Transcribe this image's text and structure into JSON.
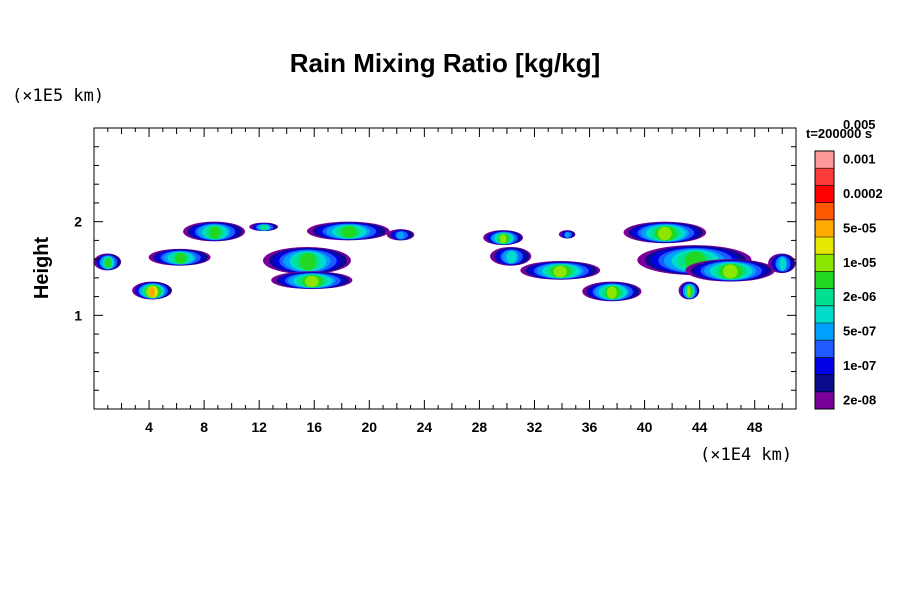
{
  "chart_data": {
    "type": "heatmap",
    "title": "Rain Mixing Ratio [kg/kg]",
    "xlabel": "",
    "ylabel": "Height",
    "x_units": "(×1E4 km)",
    "y_units": "(×1E5 km)",
    "time_label": "t=200000 s",
    "xlim": [
      0,
      51
    ],
    "ylim": [
      0,
      3
    ],
    "x_ticks": [
      4,
      8,
      12,
      16,
      20,
      24,
      28,
      32,
      36,
      40,
      44,
      48
    ],
    "y_ticks": [
      1,
      2
    ],
    "colorbar": {
      "colors": [
        "#7a009c",
        "#0a0a8c",
        "#0000e6",
        "#1e5aff",
        "#00a0ff",
        "#00dccc",
        "#00e090",
        "#20d820",
        "#8ce600",
        "#e6e600",
        "#ffaa00",
        "#ff5a00",
        "#ff0000",
        "#ff3c3c",
        "#ff9a9a"
      ],
      "tick_labels": [
        "2e-08",
        "1e-07",
        "5e-07",
        "2e-06",
        "1e-05",
        "5e-05",
        "0.0002",
        "0.001",
        "0.005"
      ]
    },
    "features": [
      {
        "x0": 0.0,
        "x1": 2.0,
        "y0": 1.48,
        "y1": 1.66,
        "peak": 7
      },
      {
        "x0": 2.8,
        "x1": 5.7,
        "y0": 1.17,
        "y1": 1.36,
        "peak": 10
      },
      {
        "x0": 6.5,
        "x1": 11.0,
        "y0": 1.79,
        "y1": 2.0,
        "peak": 7
      },
      {
        "x0": 4.0,
        "x1": 8.5,
        "y0": 1.53,
        "y1": 1.71,
        "peak": 7
      },
      {
        "x0": 11.3,
        "x1": 13.4,
        "y0": 1.9,
        "y1": 1.99,
        "peak": 6
      },
      {
        "x0": 12.3,
        "x1": 18.7,
        "y0": 1.44,
        "y1": 1.73,
        "peak": 7
      },
      {
        "x0": 12.9,
        "x1": 18.8,
        "y0": 1.28,
        "y1": 1.47,
        "peak": 8
      },
      {
        "x0": 15.5,
        "x1": 21.5,
        "y0": 1.8,
        "y1": 2.0,
        "peak": 7
      },
      {
        "x0": 21.3,
        "x1": 23.3,
        "y0": 1.8,
        "y1": 1.92,
        "peak": 4
      },
      {
        "x0": 28.3,
        "x1": 31.2,
        "y0": 1.75,
        "y1": 1.91,
        "peak": 8
      },
      {
        "x0": 28.8,
        "x1": 31.8,
        "y0": 1.53,
        "y1": 1.73,
        "peak": 5
      },
      {
        "x0": 31.0,
        "x1": 36.8,
        "y0": 1.38,
        "y1": 1.58,
        "peak": 8
      },
      {
        "x0": 35.5,
        "x1": 39.8,
        "y0": 1.15,
        "y1": 1.36,
        "peak": 8
      },
      {
        "x0": 33.8,
        "x1": 35.0,
        "y0": 1.82,
        "y1": 1.91,
        "peak": 4
      },
      {
        "x0": 38.5,
        "x1": 44.5,
        "y0": 1.77,
        "y1": 2.0,
        "peak": 8
      },
      {
        "x0": 39.5,
        "x1": 47.8,
        "y0": 1.43,
        "y1": 1.75,
        "peak": 7
      },
      {
        "x0": 43.0,
        "x1": 49.5,
        "y0": 1.36,
        "y1": 1.6,
        "peak": 8
      },
      {
        "x0": 42.5,
        "x1": 44.0,
        "y0": 1.17,
        "y1": 1.36,
        "peak": 8
      },
      {
        "x0": 49.0,
        "x1": 51.0,
        "y0": 1.45,
        "y1": 1.66,
        "peak": 5
      }
    ]
  }
}
